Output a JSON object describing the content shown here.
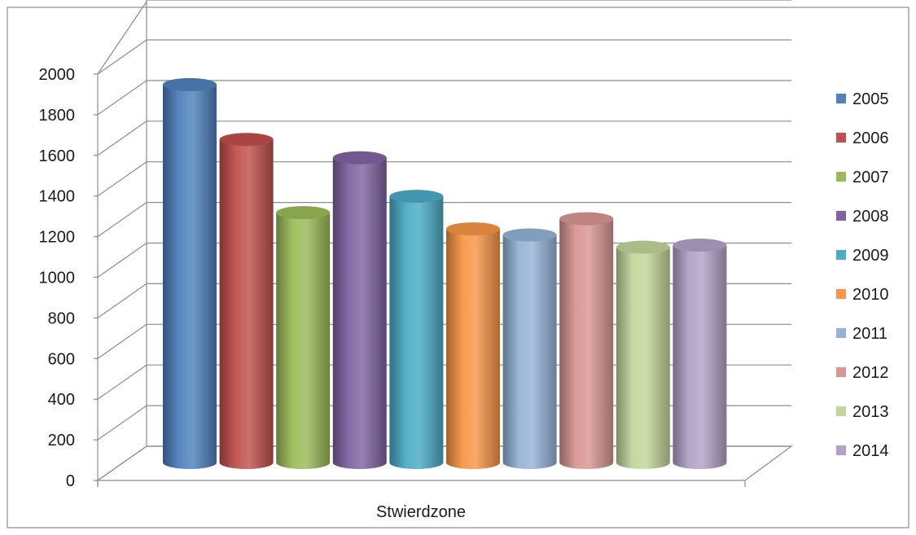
{
  "chart_data": {
    "type": "bar",
    "categories": [
      "Stwierdzone"
    ],
    "xlabel": "Stwierdzone",
    "ylim": [
      0,
      2000
    ],
    "yticks": [
      "0",
      "200",
      "400",
      "600",
      "800",
      "1000",
      "1200",
      "1400",
      "1600",
      "1800",
      "2000"
    ],
    "grid": true,
    "legend_position": "right",
    "series": [
      {
        "name": "2005",
        "values": [
          1860
        ],
        "color": "#4F81BD"
      },
      {
        "name": "2006",
        "values": [
          1590
        ],
        "color": "#C0504D"
      },
      {
        "name": "2007",
        "values": [
          1230
        ],
        "color": "#9BBB59"
      },
      {
        "name": "2008",
        "values": [
          1500
        ],
        "color": "#8064A2"
      },
      {
        "name": "2009",
        "values": [
          1310
        ],
        "color": "#4BACC6"
      },
      {
        "name": "2010",
        "values": [
          1150
        ],
        "color": "#F79646"
      },
      {
        "name": "2011",
        "values": [
          1120
        ],
        "color": "#95B3D7"
      },
      {
        "name": "2012",
        "values": [
          1200
        ],
        "color": "#D99694"
      },
      {
        "name": "2013",
        "values": [
          1060
        ],
        "color": "#C3D69B"
      },
      {
        "name": "2014",
        "values": [
          1070
        ],
        "color": "#B2A2C7"
      }
    ]
  }
}
